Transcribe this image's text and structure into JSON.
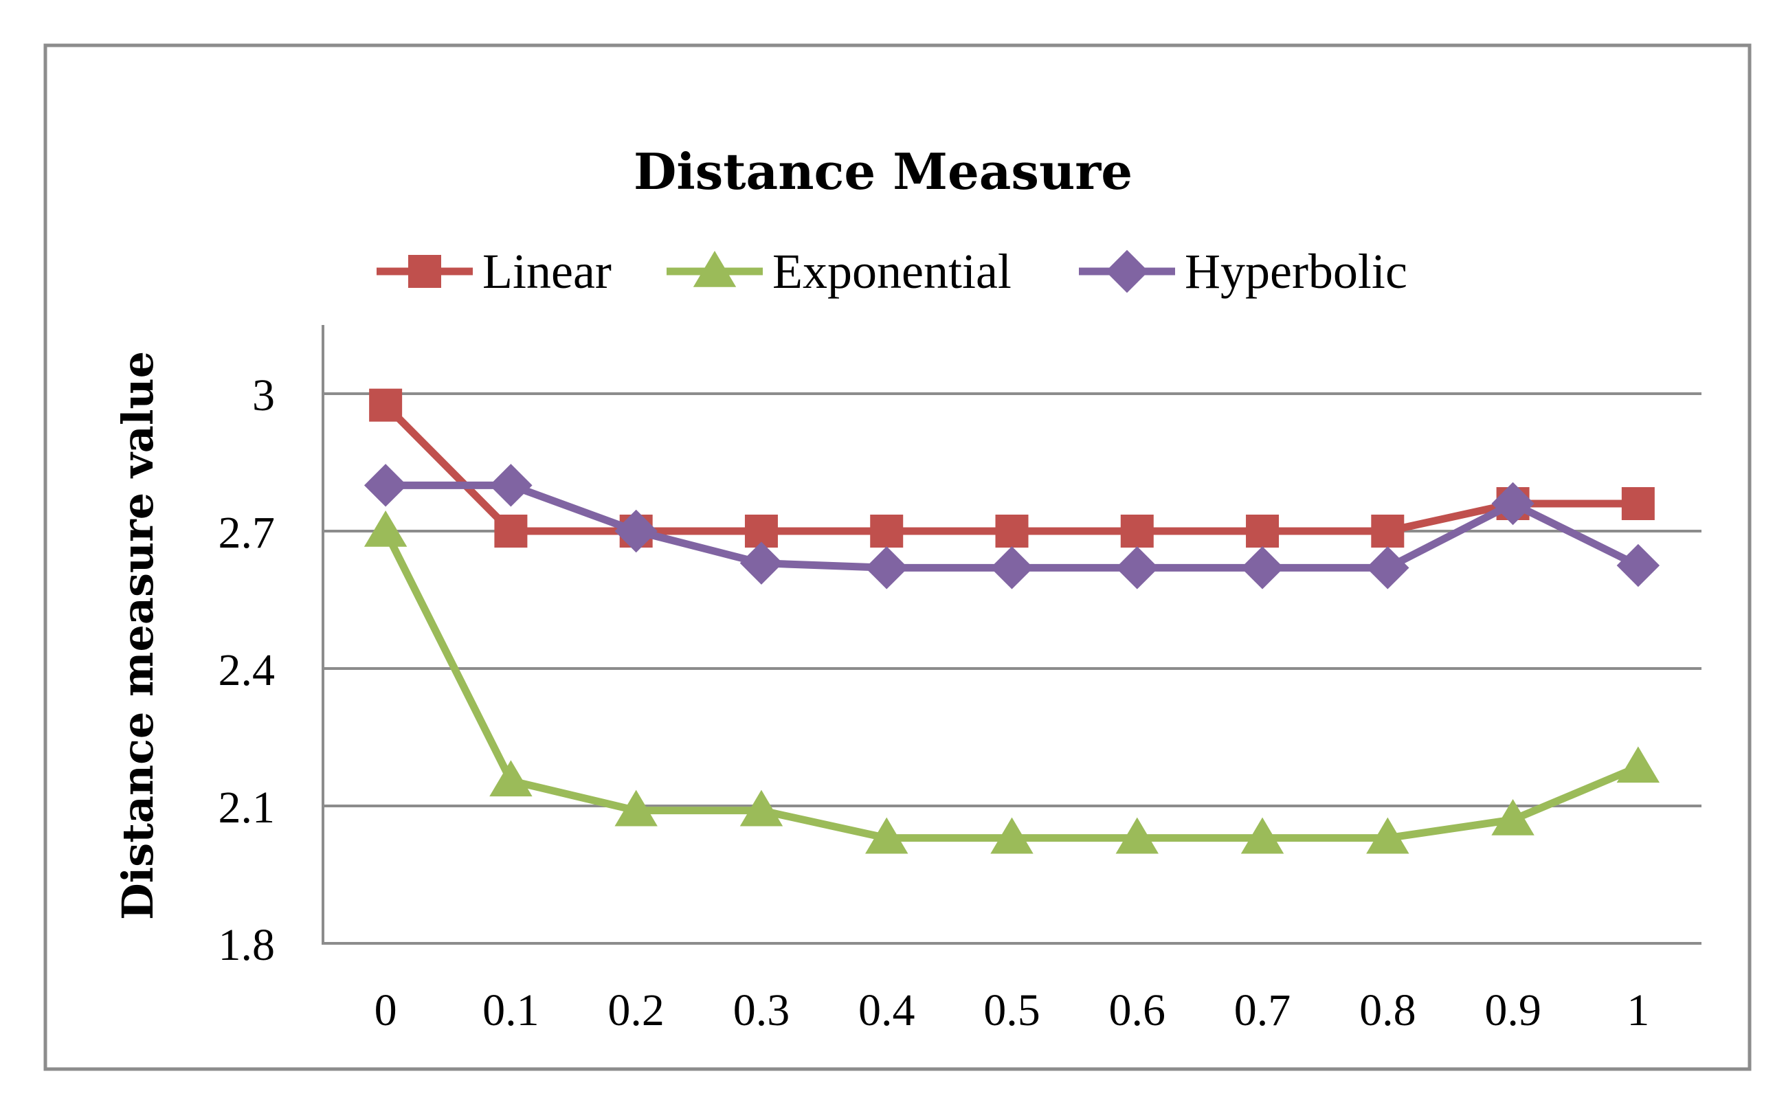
{
  "chart_data": {
    "type": "line",
    "title": "Distance Measure",
    "xlabel": "",
    "ylabel": "Distance measure value",
    "categories": [
      "0",
      "0.1",
      "0.2",
      "0.3",
      "0.4",
      "0.5",
      "0.6",
      "0.7",
      "0.8",
      "0.9",
      "1"
    ],
    "ylim": [
      1.8,
      3.15
    ],
    "yticks": [
      "1.8",
      "2.1",
      "2.4",
      "2.7",
      "3"
    ],
    "ytick_values": [
      1.8,
      2.1,
      2.4,
      2.7,
      3.0
    ],
    "grid": true,
    "legend_position": "top-center",
    "series": [
      {
        "name": "Linear",
        "marker": "square",
        "color": "#C0504D",
        "values": [
          2.975,
          2.7,
          2.7,
          2.7,
          2.7,
          2.7,
          2.7,
          2.7,
          2.7,
          2.76,
          2.76
        ]
      },
      {
        "name": "Exponential",
        "marker": "triangle",
        "color": "#9BBB59",
        "values": [
          2.7,
          2.155,
          2.09,
          2.09,
          2.03,
          2.03,
          2.03,
          2.03,
          2.03,
          2.07,
          2.185
        ]
      },
      {
        "name": "Hyperbolic",
        "marker": "diamond",
        "color": "#8064A2",
        "values": [
          2.8,
          2.8,
          2.7,
          2.63,
          2.62,
          2.62,
          2.62,
          2.62,
          2.62,
          2.76,
          2.625
        ]
      }
    ]
  }
}
